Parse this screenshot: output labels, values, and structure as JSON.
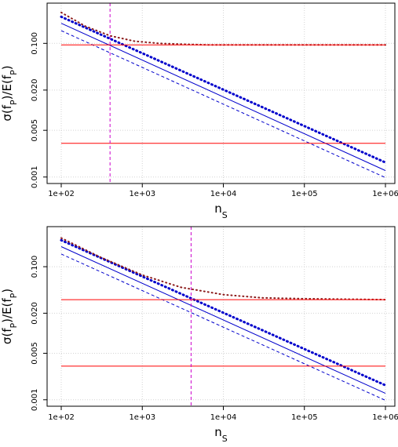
{
  "chart_data": [
    {
      "type": "line",
      "panel": "top",
      "x_scale": "log",
      "y_scale": "log",
      "xlim": [
        100,
        1000000
      ],
      "ylim": [
        0.0008,
        0.4
      ],
      "x_ticks": [
        100,
        1000,
        10000,
        100000,
        1000000
      ],
      "x_tick_labels": [
        "1e+02",
        "1e+03",
        "1e+04",
        "1e+05",
        "1e+06"
      ],
      "y_ticks": [
        0.001,
        0.005,
        0.02,
        0.1
      ],
      "y_tick_labels": [
        "0.001",
        "0.005",
        "0.020",
        "0.100"
      ],
      "xlabel_main": "n",
      "xlabel_sub": "S",
      "ylabel": "σ(fP)/E(fP)",
      "ylabel_parts": {
        "s1": "σ(f",
        "sub1": "P",
        "s2": ")/E(f",
        "sub2": "P",
        "s3": ")"
      },
      "grid": true,
      "series": [
        {
          "style": "solid",
          "color": "#0000cc",
          "x": [
            100,
            1000000
          ],
          "y": [
            0.2,
            0.00125
          ]
        },
        {
          "style": "dashed",
          "color": "#0000cc",
          "x": [
            100,
            1000000
          ],
          "y": [
            0.155,
            0.00098
          ]
        },
        {
          "style": "dotted-heavy",
          "color": "#0000cc",
          "x": [
            100,
            1000000
          ],
          "y": [
            0.25,
            0.00165
          ]
        },
        {
          "style": "dotted",
          "color": "#8b1a1a",
          "x": [
            100,
            200,
            400,
            800,
            1600,
            3200,
            6400,
            12800,
            1000000
          ],
          "y": [
            0.29,
            0.18,
            0.13,
            0.108,
            0.1,
            0.097,
            0.095,
            0.095,
            0.095
          ]
        },
        {
          "style": "solid",
          "color": "#ff0000",
          "x": [
            100,
            1000000
          ],
          "y": [
            0.095,
            0.095
          ]
        },
        {
          "style": "solid",
          "color": "#ff0000",
          "x": [
            100,
            1000000
          ],
          "y": [
            0.0032,
            0.0032
          ]
        },
        {
          "style": "dashed",
          "color": "#cc00cc",
          "orientation": "vertical",
          "x": [
            400,
            400
          ]
        }
      ]
    },
    {
      "type": "line",
      "panel": "bottom",
      "x_scale": "log",
      "y_scale": "log",
      "xlim": [
        100,
        1000000
      ],
      "ylim": [
        0.0008,
        0.4
      ],
      "x_ticks": [
        100,
        1000,
        10000,
        100000,
        1000000
      ],
      "x_tick_labels": [
        "1e+02",
        "1e+03",
        "1e+04",
        "1e+05",
        "1e+06"
      ],
      "y_ticks": [
        0.001,
        0.005,
        0.02,
        0.1
      ],
      "y_tick_labels": [
        "0.001",
        "0.005",
        "0.020",
        "0.100"
      ],
      "xlabel_main": "n",
      "xlabel_sub": "S",
      "ylabel": "σ(fP)/E(fP)",
      "ylabel_parts": {
        "s1": "σ(f",
        "sub1": "P",
        "s2": ")/E(f",
        "sub2": "P",
        "s3": ")"
      },
      "grid": true,
      "series": [
        {
          "style": "solid",
          "color": "#0000cc",
          "x": [
            100,
            1000000
          ],
          "y": [
            0.2,
            0.00125
          ]
        },
        {
          "style": "dashed",
          "color": "#0000cc",
          "x": [
            100,
            1000000
          ],
          "y": [
            0.155,
            0.00098
          ]
        },
        {
          "style": "dotted-heavy",
          "color": "#0000cc",
          "x": [
            100,
            1000000
          ],
          "y": [
            0.25,
            0.00165
          ]
        },
        {
          "style": "dotted",
          "color": "#8b1a1a",
          "x": [
            100,
            300,
            1000,
            3000,
            10000,
            30000,
            100000,
            1000000
          ],
          "y": [
            0.27,
            0.14,
            0.075,
            0.049,
            0.038,
            0.034,
            0.033,
            0.032
          ]
        },
        {
          "style": "solid",
          "color": "#ff0000",
          "x": [
            100,
            1000000
          ],
          "y": [
            0.032,
            0.032
          ]
        },
        {
          "style": "solid",
          "color": "#ff0000",
          "x": [
            100,
            1000000
          ],
          "y": [
            0.0032,
            0.0032
          ]
        },
        {
          "style": "dashed",
          "color": "#cc00cc",
          "orientation": "vertical",
          "x": [
            4000,
            4000
          ]
        }
      ]
    }
  ]
}
